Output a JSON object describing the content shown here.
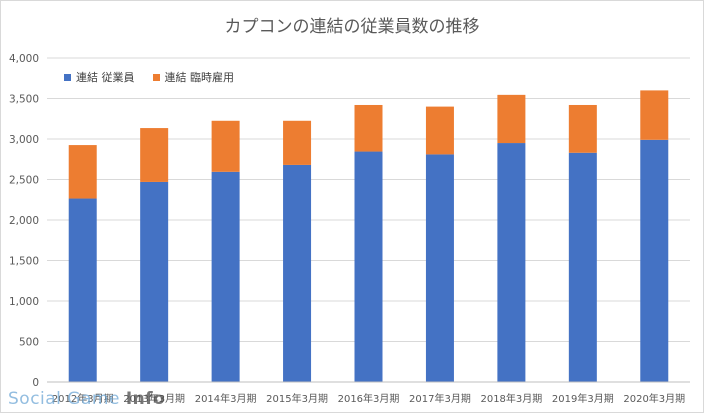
{
  "colors": {
    "series0": "#4472c4",
    "series1": "#ed7d31",
    "grid": "#d9d9d9",
    "axis_text": "#595959"
  },
  "chart_data": {
    "type": "bar",
    "stacked": true,
    "title": "カプコンの連結の従業員数の推移",
    "xlabel": "",
    "ylabel": "",
    "categories": [
      "2012年3月期",
      "2013年3月期",
      "2014年3月期",
      "2015年3月期",
      "2016年3月期",
      "2017年3月期",
      "2018年3月期",
      "2019年3月期",
      "2020年3月期"
    ],
    "series": [
      {
        "name": "連結 従業員",
        "values": [
          2265,
          2470,
          2595,
          2680,
          2845,
          2810,
          2950,
          2830,
          2990
        ]
      },
      {
        "name": "連結 臨時雇用",
        "values": [
          660,
          665,
          630,
          545,
          575,
          590,
          595,
          590,
          610
        ]
      }
    ],
    "ylim": [
      0,
      4000
    ],
    "yticks": [
      "0",
      "500",
      "1,000",
      "1,500",
      "2,000",
      "2,500",
      "3,000",
      "3,500",
      "4,000"
    ],
    "legend_position": "top-left",
    "grid": true
  },
  "watermark": {
    "prefix": "Social Game ",
    "suffix": "Info"
  }
}
